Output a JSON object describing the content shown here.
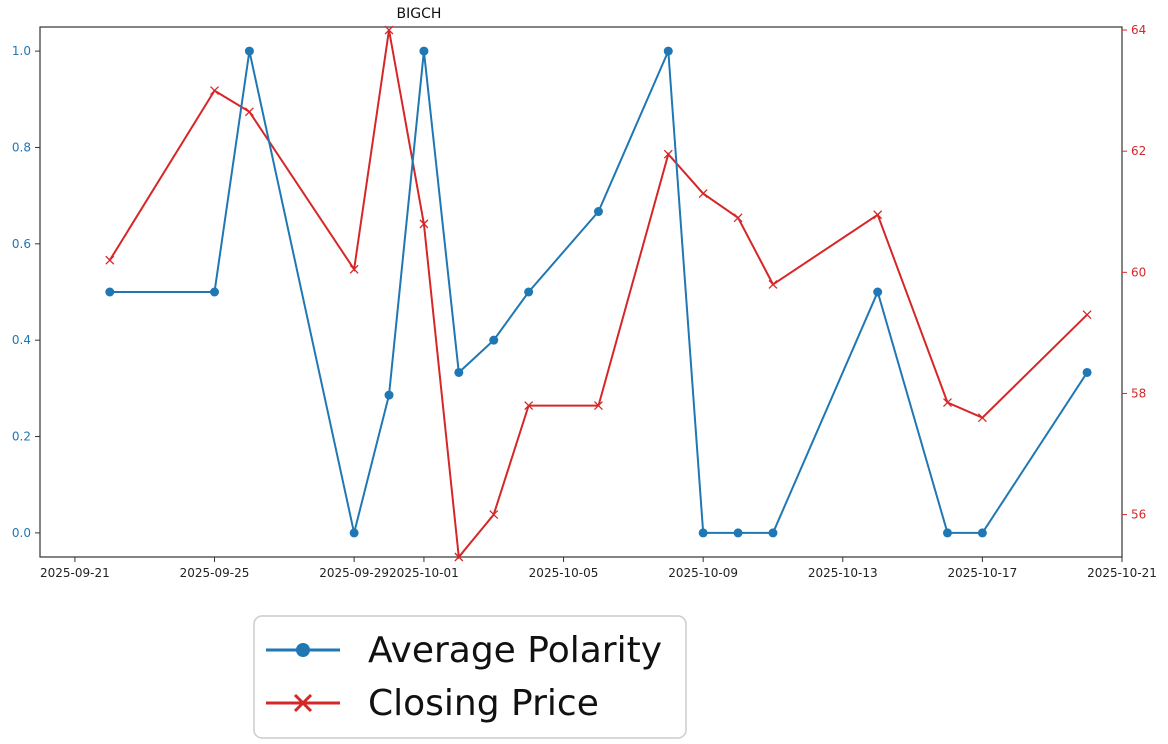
{
  "colors": {
    "polarity": "#1f77b4",
    "price": "#d62728",
    "axes": "#333333",
    "legend_border": "#cccccc"
  },
  "chart_data": {
    "type": "line",
    "title": "BIGCH",
    "x_axis": {
      "type": "date",
      "range": [
        "2025-09-20",
        "2025-10-21"
      ],
      "tick_labels": [
        "2025-09-21",
        "2025-09-25",
        "2025-09-29",
        "2025-10-01",
        "2025-10-05",
        "2025-10-09",
        "2025-10-13",
        "2025-10-17",
        "2025-10-21"
      ]
    },
    "y_axis_left": {
      "range": [
        -0.05,
        1.05
      ],
      "tick_labels": [
        "0.0",
        "0.2",
        "0.4",
        "0.6",
        "0.8",
        "1.0"
      ],
      "color": "#1f77b4"
    },
    "y_axis_right": {
      "range": [
        55.3,
        64.05
      ],
      "tick_labels": [
        "56",
        "58",
        "60",
        "62",
        "64"
      ],
      "color": "#d62728"
    },
    "grid": false,
    "legend_position": "below chart",
    "series": [
      {
        "name": "Average Polarity",
        "axis": "left",
        "marker": "circle",
        "color": "#1f77b4",
        "points": [
          {
            "x": "2025-09-22",
            "y": 0.5
          },
          {
            "x": "2025-09-25",
            "y": 0.5
          },
          {
            "x": "2025-09-26",
            "y": 1.0
          },
          {
            "x": "2025-09-29",
            "y": 0.0
          },
          {
            "x": "2025-09-30",
            "y": 0.286
          },
          {
            "x": "2025-10-01",
            "y": 1.0
          },
          {
            "x": "2025-10-02",
            "y": 0.333
          },
          {
            "x": "2025-10-03",
            "y": 0.4
          },
          {
            "x": "2025-10-04",
            "y": 0.5
          },
          {
            "x": "2025-10-06",
            "y": 0.667
          },
          {
            "x": "2025-10-08",
            "y": 1.0
          },
          {
            "x": "2025-10-09",
            "y": 0.0
          },
          {
            "x": "2025-10-10",
            "y": 0.0
          },
          {
            "x": "2025-10-11",
            "y": 0.0
          },
          {
            "x": "2025-10-14",
            "y": 0.5
          },
          {
            "x": "2025-10-16",
            "y": 0.0
          },
          {
            "x": "2025-10-17",
            "y": 0.0
          },
          {
            "x": "2025-10-20",
            "y": 0.333
          }
        ]
      },
      {
        "name": "Closing Price",
        "axis": "right",
        "marker": "x",
        "color": "#d62728",
        "points": [
          {
            "x": "2025-09-22",
            "y": 60.2
          },
          {
            "x": "2025-09-25",
            "y": 63.0
          },
          {
            "x": "2025-09-26",
            "y": 62.65
          },
          {
            "x": "2025-09-29",
            "y": 60.05
          },
          {
            "x": "2025-09-30",
            "y": 64.0
          },
          {
            "x": "2025-10-01",
            "y": 60.8
          },
          {
            "x": "2025-10-02",
            "y": 55.3
          },
          {
            "x": "2025-10-03",
            "y": 56.0
          },
          {
            "x": "2025-10-04",
            "y": 57.8
          },
          {
            "x": "2025-10-06",
            "y": 57.8
          },
          {
            "x": "2025-10-08",
            "y": 61.95
          },
          {
            "x": "2025-10-09",
            "y": 61.3
          },
          {
            "x": "2025-10-10",
            "y": 60.9
          },
          {
            "x": "2025-10-11",
            "y": 59.8
          },
          {
            "x": "2025-10-14",
            "y": 60.95
          },
          {
            "x": "2025-10-16",
            "y": 57.85
          },
          {
            "x": "2025-10-17",
            "y": 57.6
          },
          {
            "x": "2025-10-20",
            "y": 59.3
          }
        ]
      }
    ]
  }
}
